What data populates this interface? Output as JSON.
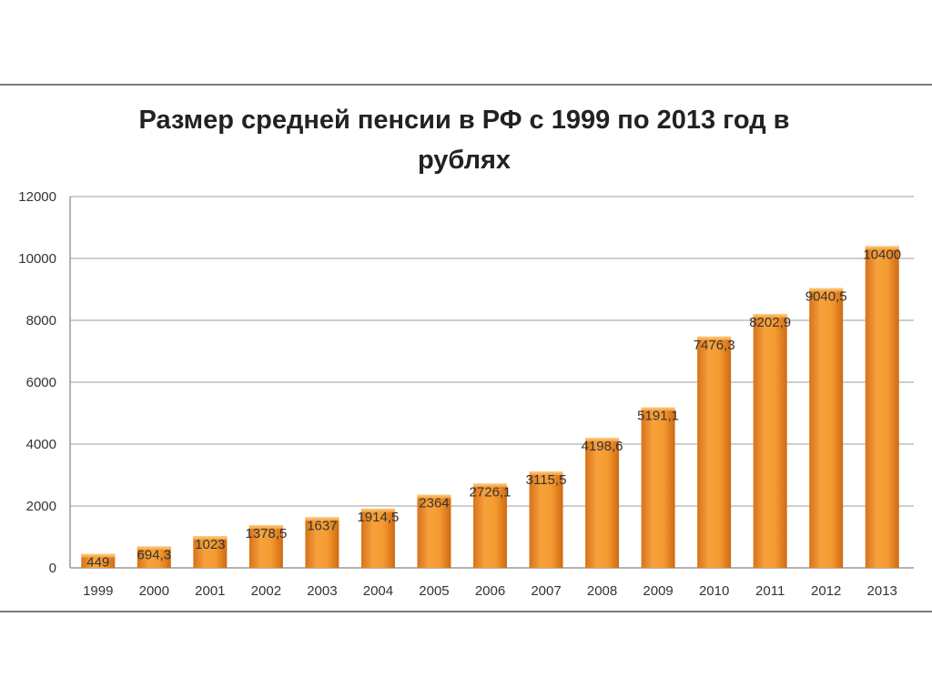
{
  "chart_data": {
    "type": "bar",
    "title": "Размер средней пенсии в РФ с 1999 по 2013 год в рублях",
    "title_lines": [
      "Размер средней пенсии в РФ с 1999 по 2013 год в",
      "рублях"
    ],
    "xlabel": "",
    "ylabel": "",
    "categories": [
      "1999",
      "2000",
      "2001",
      "2002",
      "2003",
      "2004",
      "2005",
      "2006",
      "2007",
      "2008",
      "2009",
      "2010",
      "2011",
      "2012",
      "2013"
    ],
    "values": [
      449,
      694.3,
      1023,
      1378.5,
      1637,
      1914.5,
      2364,
      2726.1,
      3115.5,
      4198.6,
      5191.1,
      7476.3,
      8202.9,
      9040.5,
      10400
    ],
    "data_labels": [
      "449",
      "694,3",
      "1023",
      "1378,5",
      "1637",
      "1914,5",
      "2364",
      "2726,1",
      "3115,5",
      "4198,6",
      "5191,1",
      "7476,3",
      "8202,9",
      "9040,5",
      "10400"
    ],
    "yticks": [
      0,
      2000,
      4000,
      6000,
      8000,
      10000,
      12000
    ],
    "ylim": [
      0,
      12000
    ],
    "grid": true,
    "legend": "none",
    "bar_color": "#f0952a"
  }
}
